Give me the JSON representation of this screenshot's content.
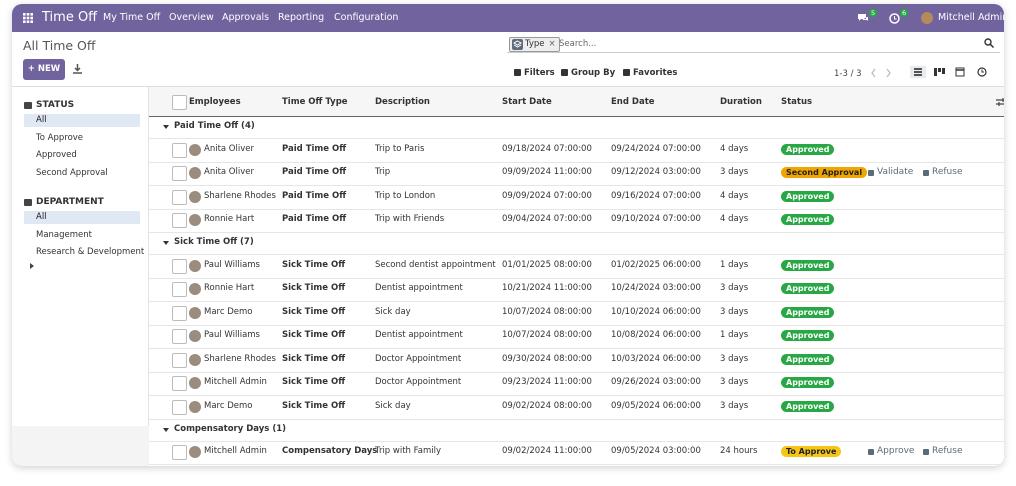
{
  "navbar": {
    "app_name": "Time Off",
    "menus": [
      "My Time Off",
      "Overview",
      "Approvals",
      "Reporting",
      "Configuration"
    ],
    "chat_badge": "5",
    "activity_badge": "6",
    "user": "Mitchell Admin"
  },
  "control_panel": {
    "title": "All Time Off",
    "new_button": "NEW",
    "facet": "Type",
    "search_placeholder": "Search...",
    "filters": [
      "Filters",
      "Group By",
      "Favorites"
    ],
    "pager": "1-3 / 3"
  },
  "sidebar": {
    "sections": [
      {
        "title": "STATUS",
        "items": [
          "All",
          "To Approve",
          "Approved",
          "Second Approval"
        ]
      },
      {
        "title": "DEPARTMENT",
        "items": [
          "All",
          "Management",
          "Research & Development"
        ]
      }
    ]
  },
  "table": {
    "columns": [
      "Employees",
      "Time Off Type",
      "Description",
      "Start Date",
      "End Date",
      "Duration",
      "Status"
    ],
    "groups": [
      {
        "label": "Paid Time Off (4)",
        "rows": [
          {
            "employee": "Anita Oliver",
            "type": "Paid Time Off",
            "description": "Trip to Paris",
            "start": "09/18/2024 07:00:00",
            "end": "09/24/2024 07:00:00",
            "duration": "4 days",
            "status": "Approved",
            "status_color": "#28a745"
          },
          {
            "employee": "Anita Oliver",
            "type": "Paid Time Off",
            "description": "Trip",
            "start": "09/09/2024 11:00:00",
            "end": "09/12/2024 03:00:00",
            "duration": "3 days",
            "status": "Second Approval",
            "status_color": "#f0a500",
            "actions": [
              "Validate",
              "Refuse"
            ]
          },
          {
            "employee": "Sharlene Rhodes",
            "type": "Paid Time Off",
            "description": "Trip to London",
            "start": "09/09/2024 07:00:00",
            "end": "09/16/2024 07:00:00",
            "duration": "4 days",
            "status": "Approved",
            "status_color": "#28a745"
          },
          {
            "employee": "Ronnie Hart",
            "type": "Paid Time Off",
            "description": "Trip with Friends",
            "start": "09/04/2024 07:00:00",
            "end": "09/10/2024 07:00:00",
            "duration": "4 days",
            "status": "Approved",
            "status_color": "#28a745"
          }
        ]
      },
      {
        "label": "Sick Time Off (7)",
        "rows": [
          {
            "employee": "Paul Williams",
            "type": "Sick Time Off",
            "description": "Second dentist appointment",
            "start": "01/01/2025 08:00:00",
            "end": "01/02/2025 06:00:00",
            "duration": "1 days",
            "status": "Approved",
            "status_color": "#28a745"
          },
          {
            "employee": "Ronnie Hart",
            "type": "Sick Time Off",
            "description": "Dentist appointment",
            "start": "10/21/2024 11:00:00",
            "end": "10/24/2024 03:00:00",
            "duration": "3 days",
            "status": "Approved",
            "status_color": "#28a745"
          },
          {
            "employee": "Marc Demo",
            "type": "Sick Time Off",
            "description": "Sick day",
            "start": "10/07/2024 08:00:00",
            "end": "10/10/2024 06:00:00",
            "duration": "3 days",
            "status": "Approved",
            "status_color": "#28a745"
          },
          {
            "employee": "Paul Williams",
            "type": "Sick Time Off",
            "description": "Dentist appointment",
            "start": "10/07/2024 08:00:00",
            "end": "10/08/2024 06:00:00",
            "duration": "1 days",
            "status": "Approved",
            "status_color": "#28a745"
          },
          {
            "employee": "Sharlene Rhodes",
            "type": "Sick Time Off",
            "description": "Doctor Appointment",
            "start": "09/30/2024 08:00:00",
            "end": "10/03/2024 06:00:00",
            "duration": "3 days",
            "status": "Approved",
            "status_color": "#28a745"
          },
          {
            "employee": "Mitchell Admin",
            "type": "Sick Time Off",
            "description": "Doctor Appointment",
            "start": "09/23/2024 11:00:00",
            "end": "09/26/2024 03:00:00",
            "duration": "3 days",
            "status": "Approved",
            "status_color": "#28a745"
          },
          {
            "employee": "Marc Demo",
            "type": "Sick Time Off",
            "description": "Sick day",
            "start": "09/02/2024 08:00:00",
            "end": "09/05/2024 06:00:00",
            "duration": "3 days",
            "status": "Approved",
            "status_color": "#28a745"
          }
        ]
      },
      {
        "label": "Compensatory Days (1)",
        "rows": [
          {
            "employee": "Mitchell Admin",
            "type": "Compensatory Days",
            "description": "Trip with Family",
            "start": "09/02/2024 11:00:00",
            "end": "09/05/2024 03:00:00",
            "duration": "24 hours",
            "status": "To Approve",
            "status_color": "#f5c518",
            "actions": [
              "Approve",
              "Refuse"
            ]
          }
        ]
      }
    ]
  }
}
